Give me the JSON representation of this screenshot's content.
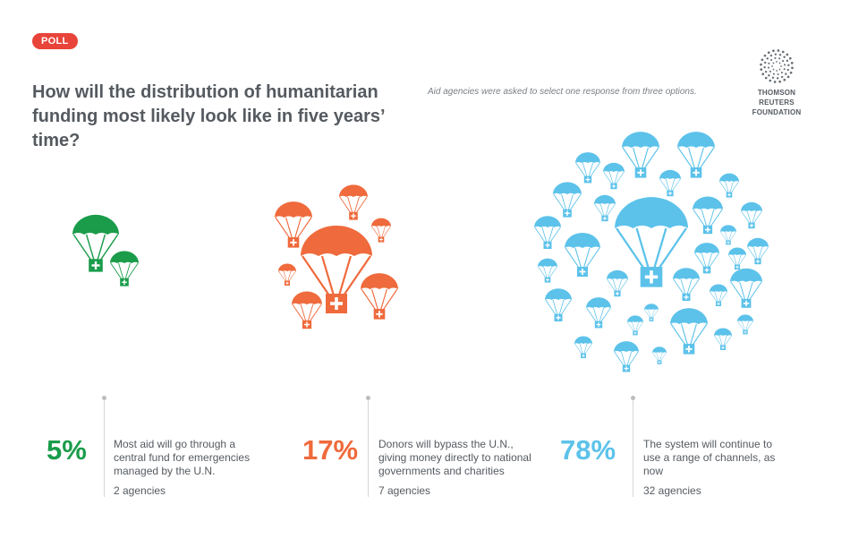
{
  "badge": "POLL",
  "title": "How will the distribution of humanitarian funding most likely look like in five years’ time?",
  "note": "Aid agencies were asked to select one response from three options.",
  "logo": {
    "line1": "THOMSON REUTERS",
    "line2": "FOUNDATION",
    "icon": "radial-dots-logo-icon"
  },
  "colors": {
    "green": "#1a9c4b",
    "orange": "#ef6a3c",
    "blue": "#5cc2ea",
    "badge": "#e8443a",
    "text": "#555a60"
  },
  "chart_data": {
    "type": "pictogram",
    "categories": [
      "Most aid will go through a central fund for emergencies managed by the U.N.",
      "Donors will bypass the U.N., giving money directly to national governments and charities",
      "The system will continue to use a range of channels, as now"
    ],
    "series": [
      {
        "values": [
          5,
          17,
          78
        ],
        "labels": [
          "5%",
          "17%",
          "78%"
        ]
      },
      {
        "values": [
          2,
          7,
          32
        ],
        "labels": [
          "2 agencies",
          "7 agencies",
          "32 agencies"
        ]
      }
    ],
    "icon": "parachute-aid-crate-icon",
    "colors": [
      "#1a9c4b",
      "#ef6a3c",
      "#5cc2ea"
    ]
  },
  "stats": [
    {
      "pct": "5%",
      "desc": "Most aid will go through a central fund for emergencies managed by the U.N.",
      "count": "2 agencies",
      "color": "#1a9c4b"
    },
    {
      "pct": "17%",
      "desc": "Donors will bypass the U.N., giving money directly to national governments and charities",
      "count": "7 agencies",
      "color": "#ef6a3c"
    },
    {
      "pct": "78%",
      "desc": "The system will continue to use a range of channels, as now",
      "count": "32 agencies",
      "color": "#5cc2ea"
    }
  ]
}
